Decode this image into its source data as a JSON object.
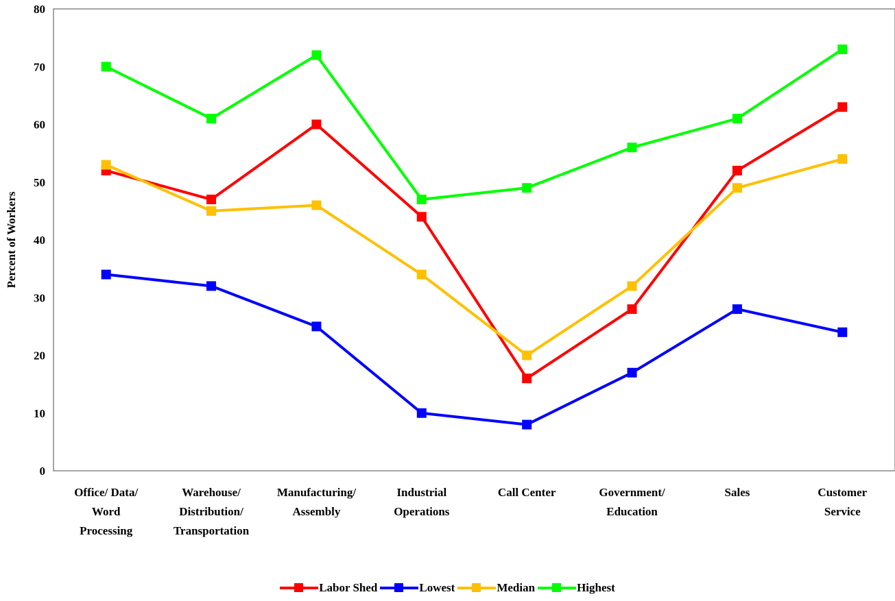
{
  "chart_data": {
    "type": "line",
    "ylabel": "Percent of Workers",
    "ylim": [
      0,
      80
    ],
    "yticks": [
      "0",
      "10",
      "20",
      "30",
      "40",
      "50",
      "60",
      "70",
      "80"
    ],
    "categories": [
      [
        "Office/ Data/",
        "Word",
        "Processing"
      ],
      [
        "Warehouse/",
        "Distribution/",
        "Transportation"
      ],
      [
        "Manufacturing/",
        "Assembly"
      ],
      [
        "Industrial",
        "Operations"
      ],
      [
        "Call Center"
      ],
      [
        "Government/",
        "Education"
      ],
      [
        "Sales"
      ],
      [
        "Customer",
        "Service"
      ]
    ],
    "series": [
      {
        "name": "Labor Shed",
        "color": "#ff0000",
        "values": [
          52,
          47,
          60,
          44,
          16,
          28,
          52,
          63
        ]
      },
      {
        "name": "Lowest",
        "color": "#0000ff",
        "values": [
          34,
          32,
          25,
          10,
          8,
          17,
          28,
          24
        ]
      },
      {
        "name": "Median",
        "color": "#ffc000",
        "values": [
          53,
          45,
          46,
          34,
          20,
          32,
          49,
          54
        ]
      },
      {
        "name": "Highest",
        "color": "#00ff00",
        "values": [
          70,
          61,
          72,
          47,
          49,
          56,
          61,
          73
        ]
      }
    ],
    "grid": false,
    "legend_position": "bottom"
  }
}
